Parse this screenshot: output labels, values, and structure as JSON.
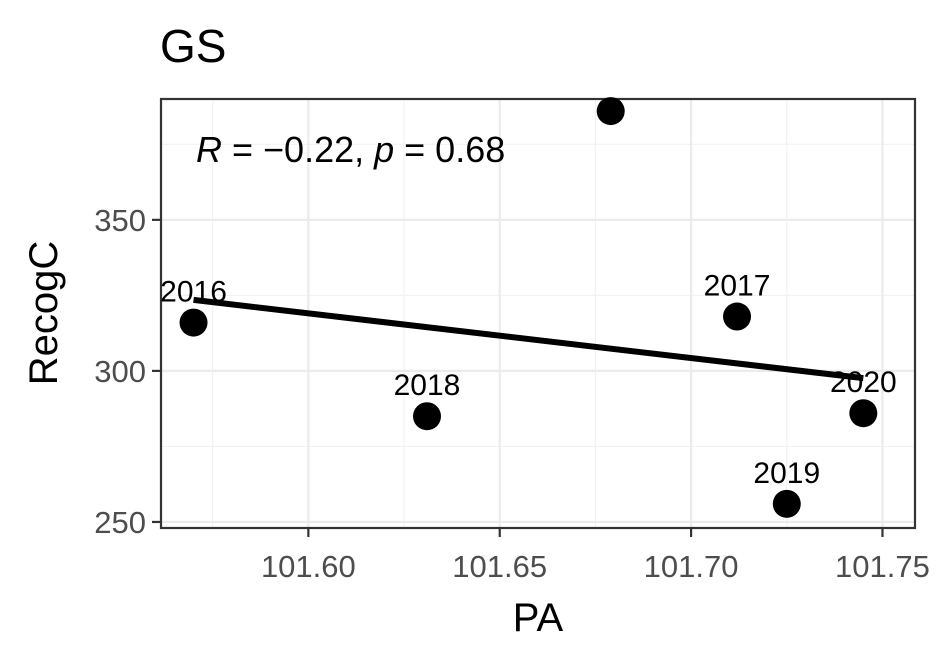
{
  "chart_data": {
    "type": "scatter",
    "title": "GS",
    "xlabel": "PA",
    "ylabel": "RecogC",
    "xlim": [
      101.5615,
      101.7585
    ],
    "ylim": [
      248,
      390
    ],
    "x_ticks": [
      101.6,
      101.65,
      101.7,
      101.75
    ],
    "x_tick_labels": [
      "101.60",
      "101.65",
      "101.70",
      "101.75"
    ],
    "y_ticks": [
      250,
      300,
      350
    ],
    "y_tick_labels": [
      "250",
      "300",
      "350"
    ],
    "grid": true,
    "points": [
      {
        "x": 101.57,
        "y": 316,
        "label": "2016"
      },
      {
        "x": 101.712,
        "y": 318,
        "label": "2017"
      },
      {
        "x": 101.631,
        "y": 285,
        "label": "2018"
      },
      {
        "x": 101.725,
        "y": 256,
        "label": "2019"
      },
      {
        "x": 101.745,
        "y": 286,
        "label": "2020"
      },
      {
        "x": 101.679,
        "y": 386,
        "label": ""
      }
    ],
    "fit_line": {
      "x": [
        101.57,
        101.745
      ],
      "y": [
        323.5,
        297.6
      ]
    },
    "annotation": {
      "r_symbol": "R",
      "r_text": " = −0.22, ",
      "p_symbol": "p",
      "p_text": " = 0.68"
    }
  }
}
